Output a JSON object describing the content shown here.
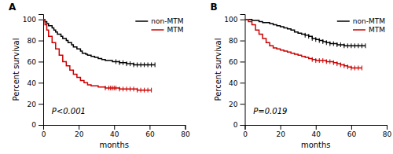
{
  "chart_data": [
    {
      "type": "line",
      "title": "A",
      "annotations": [
        "P<0.001"
      ],
      "x_label": "months",
      "y_label": "Percent survival",
      "xlim": [
        0,
        80
      ],
      "ylim": [
        0,
        105
      ],
      "xticks": [
        0,
        20,
        40,
        60,
        80
      ],
      "yticks": [
        0,
        20,
        40,
        60,
        80,
        100
      ],
      "grid": false,
      "legend": "upper right",
      "series": [
        {
          "name": "non-MTM",
          "type": "step",
          "color": "#000000",
          "x": [
            0,
            1,
            2,
            3,
            5,
            6,
            7,
            8,
            10,
            11,
            13,
            14,
            16,
            17,
            19,
            21,
            22,
            24,
            25,
            27,
            29,
            31,
            33,
            35,
            37,
            39,
            41,
            43,
            45,
            47,
            49,
            51,
            53,
            55,
            57,
            59,
            61,
            63
          ],
          "values": [
            100,
            98,
            96,
            94,
            92,
            90,
            88,
            86,
            84,
            82,
            80,
            78,
            76,
            74,
            72,
            70,
            68,
            67,
            66,
            65,
            64,
            63,
            62,
            61,
            61,
            60,
            60,
            59,
            59,
            58,
            58,
            57,
            57,
            57,
            57,
            57,
            57,
            57
          ]
        },
        {
          "type": "scatter",
          "marker": "vline",
          "color": "#000000",
          "x": [
            41,
            43,
            45,
            47,
            49,
            51,
            53,
            55,
            57,
            59,
            61,
            63
          ],
          "values": [
            60,
            59,
            59,
            58,
            58,
            57,
            57,
            57,
            57,
            57,
            57,
            57
          ]
        },
        {
          "name": "MTM",
          "type": "step",
          "color": "#cc0000",
          "x": [
            0,
            1,
            2,
            3,
            5,
            7,
            9,
            11,
            13,
            15,
            17,
            19,
            21,
            23,
            25,
            27,
            29,
            31,
            33,
            35,
            37,
            38,
            39,
            40,
            41,
            43,
            45,
            47,
            49,
            51,
            53,
            55,
            57,
            59,
            61
          ],
          "values": [
            100,
            95,
            90,
            84,
            78,
            72,
            66,
            60,
            56,
            52,
            48,
            45,
            42,
            40,
            38,
            37,
            37,
            36,
            36,
            35,
            35,
            35,
            35,
            35,
            35,
            34,
            34,
            34,
            34,
            34,
            33,
            33,
            33,
            33,
            33
          ]
        },
        {
          "type": "scatter",
          "marker": "vline",
          "color": "#cc0000",
          "x": [
            35,
            37,
            38,
            39,
            40,
            41,
            43,
            45,
            47,
            49,
            51,
            53,
            55,
            57,
            59,
            61
          ],
          "values": [
            35,
            35,
            35,
            35,
            35,
            35,
            34,
            34,
            34,
            34,
            34,
            33,
            33,
            33,
            33,
            33
          ]
        }
      ]
    },
    {
      "type": "line",
      "title": "B",
      "annotations": [
        "P=0.019"
      ],
      "x_label": "months",
      "y_label": "Percent survival",
      "xlim": [
        0,
        80
      ],
      "ylim": [
        0,
        105
      ],
      "xticks": [
        0,
        20,
        40,
        60,
        80
      ],
      "yticks": [
        0,
        20,
        40,
        60,
        80,
        100
      ],
      "grid": false,
      "legend": "upper right",
      "series": [
        {
          "name": "non-MTM",
          "type": "step",
          "color": "#000000",
          "x": [
            0,
            2,
            4,
            6,
            8,
            10,
            12,
            14,
            16,
            18,
            20,
            22,
            24,
            26,
            28,
            30,
            32,
            34,
            36,
            38,
            40,
            42,
            44,
            46,
            48,
            50,
            52,
            54,
            56,
            58,
            60,
            62,
            64,
            66,
            68
          ],
          "values": [
            100,
            100,
            99,
            99,
            98,
            97,
            97,
            96,
            95,
            94,
            93,
            92,
            91,
            90,
            88,
            87,
            86,
            85,
            84,
            82,
            81,
            80,
            79,
            78,
            77,
            77,
            76,
            76,
            75,
            75,
            75,
            75,
            75,
            75,
            75
          ]
        },
        {
          "type": "scatter",
          "marker": "vline",
          "color": "#000000",
          "x": [
            34,
            36,
            38,
            40,
            42,
            44,
            46,
            48,
            50,
            52,
            54,
            56,
            58,
            60,
            62,
            64,
            66,
            68
          ],
          "values": [
            85,
            84,
            82,
            81,
            80,
            79,
            78,
            77,
            77,
            76,
            76,
            75,
            75,
            75,
            75,
            75,
            75,
            75
          ]
        },
        {
          "name": "MTM",
          "type": "step",
          "color": "#cc0000",
          "x": [
            0,
            2,
            4,
            6,
            8,
            10,
            12,
            14,
            16,
            18,
            20,
            22,
            24,
            26,
            28,
            30,
            32,
            34,
            36,
            38,
            40,
            42,
            44,
            46,
            48,
            50,
            52,
            54,
            56,
            58,
            60,
            62,
            64,
            66
          ],
          "values": [
            100,
            98,
            95,
            90,
            86,
            82,
            78,
            75,
            73,
            72,
            71,
            70,
            69,
            68,
            67,
            66,
            65,
            64,
            63,
            62,
            61,
            61,
            61,
            60,
            60,
            59,
            58,
            57,
            56,
            55,
            54,
            54,
            54,
            54
          ]
        },
        {
          "type": "scatter",
          "marker": "vline",
          "color": "#cc0000",
          "x": [
            38,
            40,
            42,
            44,
            46,
            48,
            50,
            52,
            54,
            56,
            58,
            60,
            62,
            64,
            66
          ],
          "values": [
            62,
            61,
            61,
            61,
            60,
            60,
            59,
            58,
            57,
            56,
            55,
            54,
            54,
            54,
            54
          ]
        }
      ]
    }
  ]
}
